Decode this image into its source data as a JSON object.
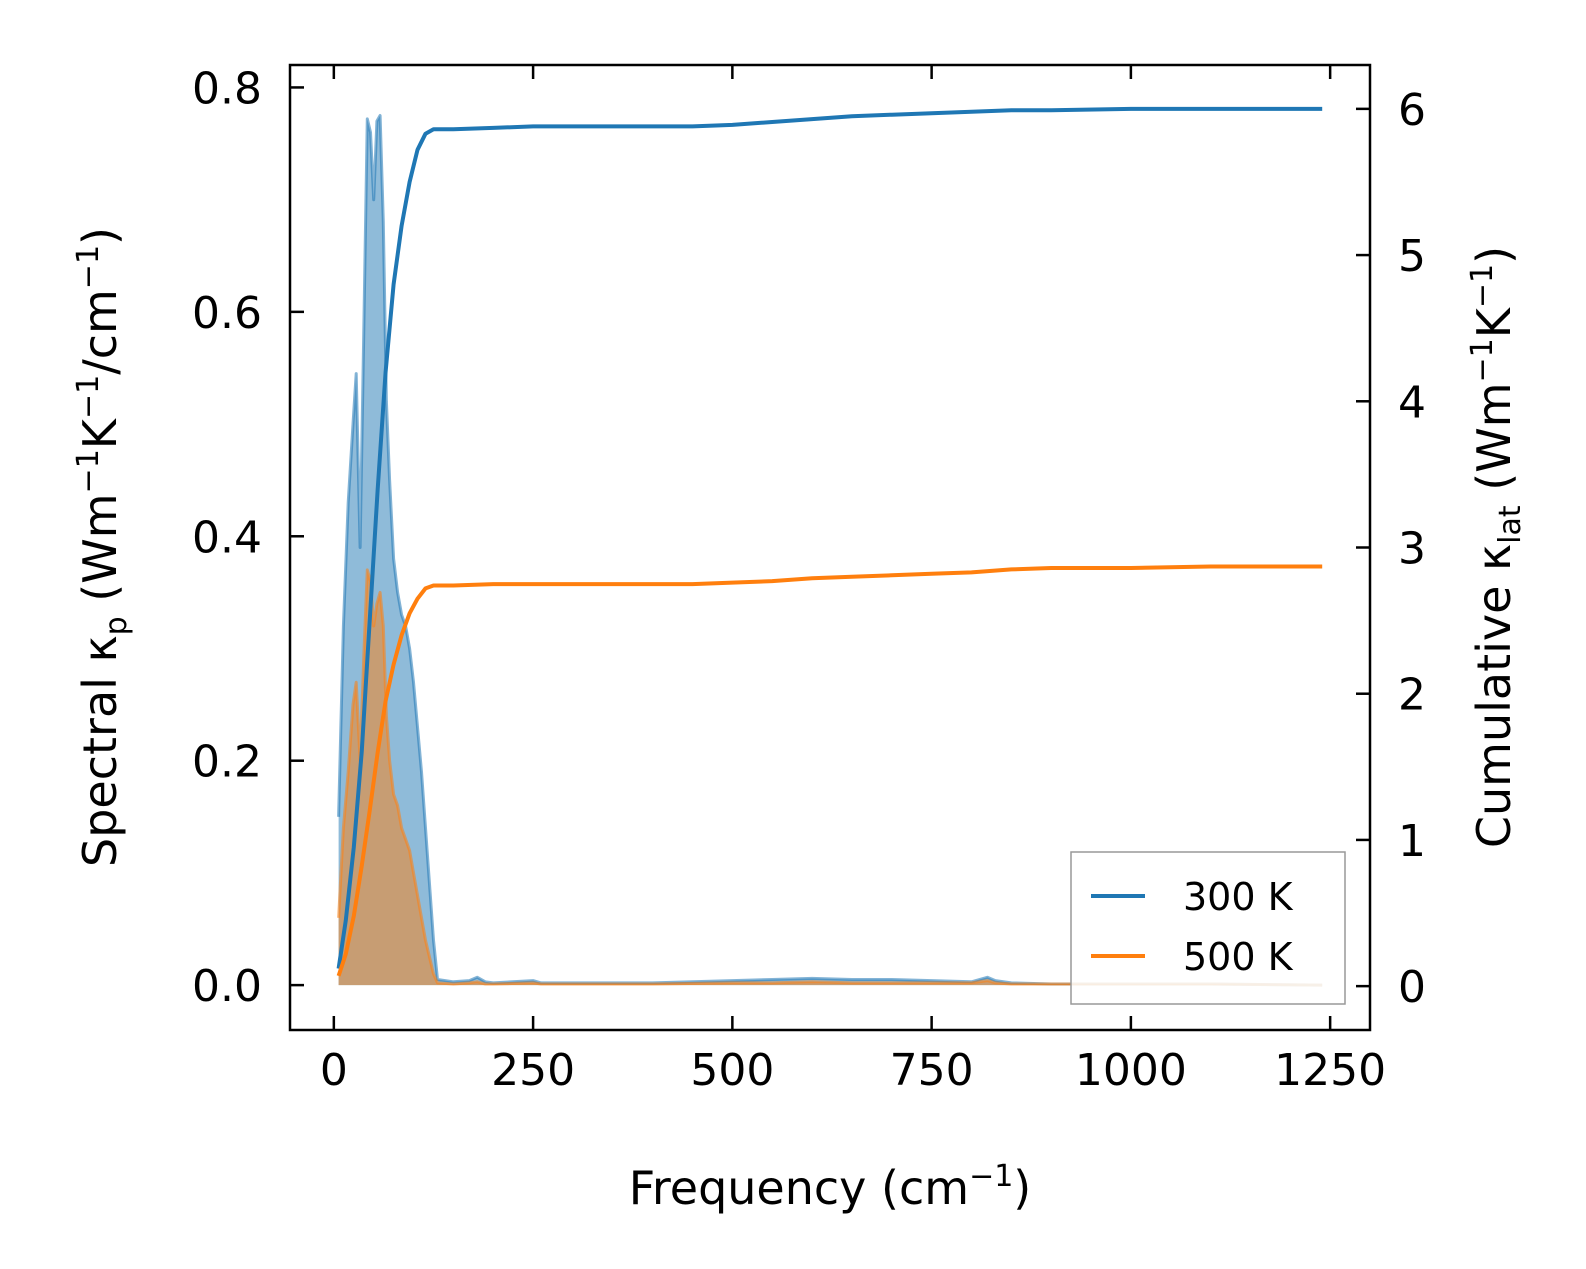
{
  "chart_data": {
    "type": "line",
    "title": "",
    "xlabel": "Frequency (cm⁻¹)",
    "xlabel_parts": {
      "base": "Frequency (cm",
      "sup": "−1",
      "tail": ")"
    },
    "ylabel_left_parts": {
      "a": "Spectral κ",
      "sub": "p",
      "b": " (Wm",
      "sup1": "−1",
      "c": "K",
      "sup2": "−1",
      "d": "/cm",
      "sup3": "−1",
      "e": ")"
    },
    "ylabel_right_parts": {
      "a": "Cumulative κ",
      "sub": "lat",
      "b": " (Wm",
      "sup1": "−1",
      "c": "K",
      "sup2": "−1",
      "d": ")"
    },
    "xlim": [
      -55,
      1300
    ],
    "ylim_left": [
      -0.04,
      0.82
    ],
    "ylim_right": [
      -0.3,
      6.3
    ],
    "x_ticks": [
      0,
      250,
      500,
      750,
      1000,
      1250
    ],
    "x_tick_labels": [
      "0",
      "250",
      "500",
      "750",
      "1000",
      "1250"
    ],
    "y_left_ticks": [
      0.0,
      0.2,
      0.4,
      0.6,
      0.8
    ],
    "y_left_tick_labels": [
      "0.0",
      "0.2",
      "0.4",
      "0.6",
      "0.8"
    ],
    "y_right_ticks": [
      0,
      1,
      2,
      3,
      4,
      5,
      6
    ],
    "y_right_tick_labels": [
      "0",
      "1",
      "2",
      "3",
      "4",
      "5",
      "6"
    ],
    "legend": {
      "placement": "lower-right",
      "entries": [
        "300 K",
        "500 K"
      ]
    },
    "grid": false,
    "colors": {
      "300 K": "#1f77b4",
      "500 K": "#ff7f0e"
    },
    "series": [
      {
        "name": "300 K",
        "spectral": {
          "x": [
            6,
            12,
            18,
            24,
            28,
            33,
            38,
            42,
            46,
            50,
            54,
            58,
            62,
            66,
            70,
            75,
            80,
            85,
            90,
            95,
            100,
            105,
            110,
            115,
            120,
            125,
            130,
            150,
            170,
            180,
            190,
            200,
            250,
            260,
            300,
            400,
            500,
            550,
            600,
            650,
            700,
            750,
            800,
            820,
            830,
            850,
            900,
            1000,
            1100,
            1240
          ],
          "y": [
            0.15,
            0.32,
            0.43,
            0.5,
            0.545,
            0.39,
            0.6,
            0.772,
            0.76,
            0.7,
            0.77,
            0.775,
            0.68,
            0.52,
            0.45,
            0.38,
            0.35,
            0.33,
            0.32,
            0.3,
            0.27,
            0.23,
            0.19,
            0.14,
            0.09,
            0.04,
            0.005,
            0.003,
            0.004,
            0.007,
            0.003,
            0.002,
            0.004,
            0.002,
            0.002,
            0.002,
            0.004,
            0.005,
            0.006,
            0.005,
            0.005,
            0.004,
            0.003,
            0.007,
            0.004,
            0.002,
            0.001,
            0.001,
            0.001,
            0.0
          ]
        },
        "cumulative": {
          "x": [
            6,
            15,
            25,
            35,
            45,
            55,
            65,
            75,
            85,
            95,
            105,
            115,
            125,
            150,
            200,
            250,
            300,
            400,
            450,
            500,
            550,
            600,
            650,
            700,
            750,
            800,
            850,
            900,
            1000,
            1100,
            1240
          ],
          "y": [
            0.12,
            0.45,
            0.95,
            1.6,
            2.5,
            3.4,
            4.2,
            4.8,
            5.2,
            5.5,
            5.72,
            5.83,
            5.86,
            5.86,
            5.87,
            5.88,
            5.88,
            5.88,
            5.88,
            5.89,
            5.91,
            5.93,
            5.95,
            5.96,
            5.97,
            5.98,
            5.99,
            5.99,
            6.0,
            6.0,
            6.0
          ]
        }
      },
      {
        "name": "500 K",
        "spectral": {
          "x": [
            6,
            12,
            18,
            24,
            28,
            33,
            38,
            42,
            46,
            50,
            54,
            58,
            62,
            66,
            70,
            75,
            80,
            85,
            90,
            95,
            100,
            105,
            110,
            115,
            120,
            125,
            130,
            150,
            170,
            180,
            190,
            200,
            250,
            260,
            300,
            400,
            500,
            550,
            600,
            650,
            700,
            750,
            800,
            820,
            830,
            850,
            900,
            1000,
            1100,
            1240
          ],
          "y": [
            0.06,
            0.14,
            0.19,
            0.25,
            0.27,
            0.2,
            0.3,
            0.37,
            0.36,
            0.32,
            0.34,
            0.35,
            0.32,
            0.24,
            0.2,
            0.17,
            0.16,
            0.14,
            0.13,
            0.12,
            0.1,
            0.08,
            0.06,
            0.04,
            0.025,
            0.01,
            0.002,
            0.001,
            0.002,
            0.003,
            0.001,
            0.001,
            0.002,
            0.001,
            0.001,
            0.001,
            0.002,
            0.002,
            0.003,
            0.002,
            0.002,
            0.002,
            0.002,
            0.004,
            0.002,
            0.001,
            0.001,
            0.001,
            0.001,
            0.0
          ]
        },
        "cumulative": {
          "x": [
            6,
            15,
            25,
            35,
            45,
            55,
            65,
            75,
            85,
            95,
            105,
            115,
            125,
            150,
            200,
            250,
            300,
            400,
            450,
            500,
            550,
            600,
            650,
            700,
            750,
            800,
            850,
            900,
            1000,
            1100,
            1240
          ],
          "y": [
            0.07,
            0.22,
            0.48,
            0.82,
            1.2,
            1.6,
            1.95,
            2.2,
            2.4,
            2.55,
            2.65,
            2.72,
            2.74,
            2.74,
            2.75,
            2.75,
            2.75,
            2.75,
            2.75,
            2.76,
            2.77,
            2.79,
            2.8,
            2.81,
            2.82,
            2.83,
            2.85,
            2.86,
            2.86,
            2.87,
            2.87
          ]
        }
      }
    ]
  }
}
